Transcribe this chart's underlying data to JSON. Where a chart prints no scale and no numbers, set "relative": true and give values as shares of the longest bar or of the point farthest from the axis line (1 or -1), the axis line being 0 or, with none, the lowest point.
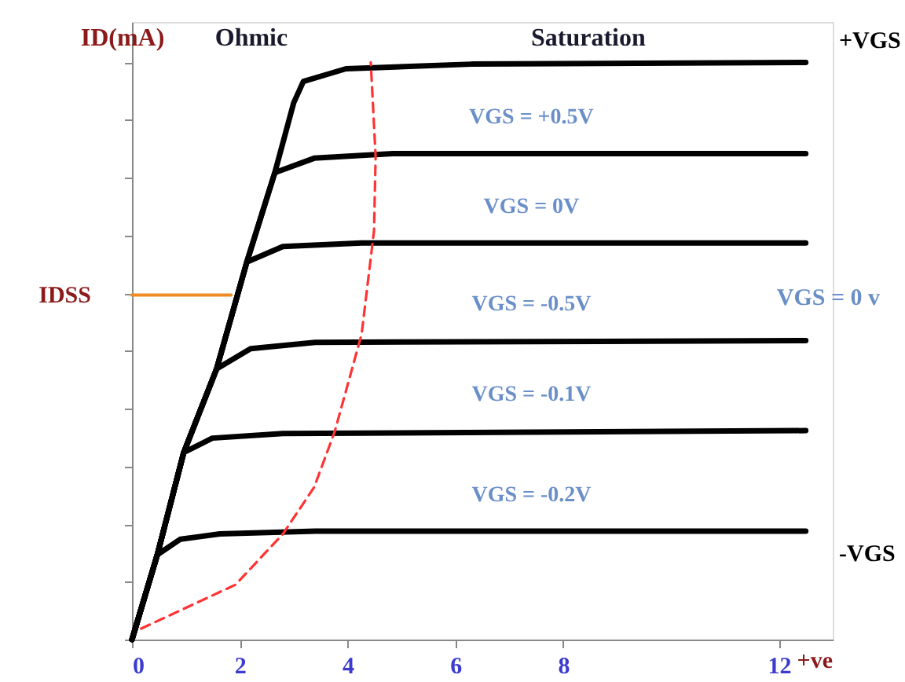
{
  "chart_data": {
    "type": "line",
    "relative": true,
    "ylabel": "ID(mA)",
    "xlabel": "+ve",
    "xlim": [
      0,
      13
    ],
    "ylim": [
      0,
      1.07
    ],
    "xticks": [
      0,
      2,
      4,
      6,
      8,
      12
    ],
    "grid": false,
    "line_style": "solid",
    "series": [
      {
        "color": "#000000",
        "x": [
          0,
          0.47,
          0.96,
          1.57,
          2.13,
          2.65,
          3.0,
          3.18,
          3.97,
          6.3,
          12.5
        ],
        "values": [
          0,
          0.147,
          0.324,
          0.469,
          0.654,
          0.809,
          0.93,
          0.967,
          0.989,
          0.997,
          1.0
        ]
      },
      {
        "color": "#000000",
        "x": [
          0,
          0.47,
          0.96,
          1.57,
          2.13,
          2.65,
          3.38,
          4.84,
          12.5
        ],
        "values": [
          0,
          0.147,
          0.324,
          0.469,
          0.654,
          0.809,
          0.834,
          0.842,
          0.842
        ]
      },
      {
        "color": "#000000",
        "x": [
          0,
          0.47,
          0.96,
          1.57,
          2.13,
          2.8,
          4.26,
          12.5
        ],
        "values": [
          0,
          0.147,
          0.324,
          0.469,
          0.654,
          0.681,
          0.687,
          0.687
        ]
      },
      {
        "color": "#000000",
        "x": [
          0,
          0.47,
          0.96,
          1.57,
          2.2,
          3.4,
          12.5
        ],
        "values": [
          0,
          0.147,
          0.324,
          0.469,
          0.504,
          0.515,
          0.518
        ]
      },
      {
        "color": "#000000",
        "x": [
          0,
          0.47,
          0.96,
          1.49,
          2.8,
          12.5
        ],
        "values": [
          0,
          0.147,
          0.324,
          0.349,
          0.357,
          0.362
        ]
      },
      {
        "color": "#000000",
        "x": [
          0,
          0.47,
          0.9,
          1.63,
          3.4,
          12.5
        ],
        "values": [
          0,
          0.147,
          0.174,
          0.183,
          0.188,
          0.188
        ]
      },
      {
        "color": "#ff3333",
        "line_style": "dashed",
        "x": [
          0.17,
          1.92,
          2.8,
          3.38,
          3.76,
          4.26,
          4.49,
          4.52,
          4.43
        ],
        "values": [
          0.019,
          0.095,
          0.183,
          0.264,
          0.36,
          0.529,
          0.708,
          0.837,
          1.0
        ]
      },
      {
        "name": "IDSS",
        "color": "#f08a24",
        "x": [
          0,
          1.84
        ],
        "values": [
          0.597,
          0.597
        ]
      }
    ],
    "annotations": [
      "Ohmic",
      "Saturation",
      "VGS = +0.5V",
      "VGS = 0V",
      "VGS = -0.5V",
      "VGS = -0.1V",
      "VGS = -0.2V",
      "+VGS",
      "VGS = 0 v",
      "-VGS"
    ]
  }
}
